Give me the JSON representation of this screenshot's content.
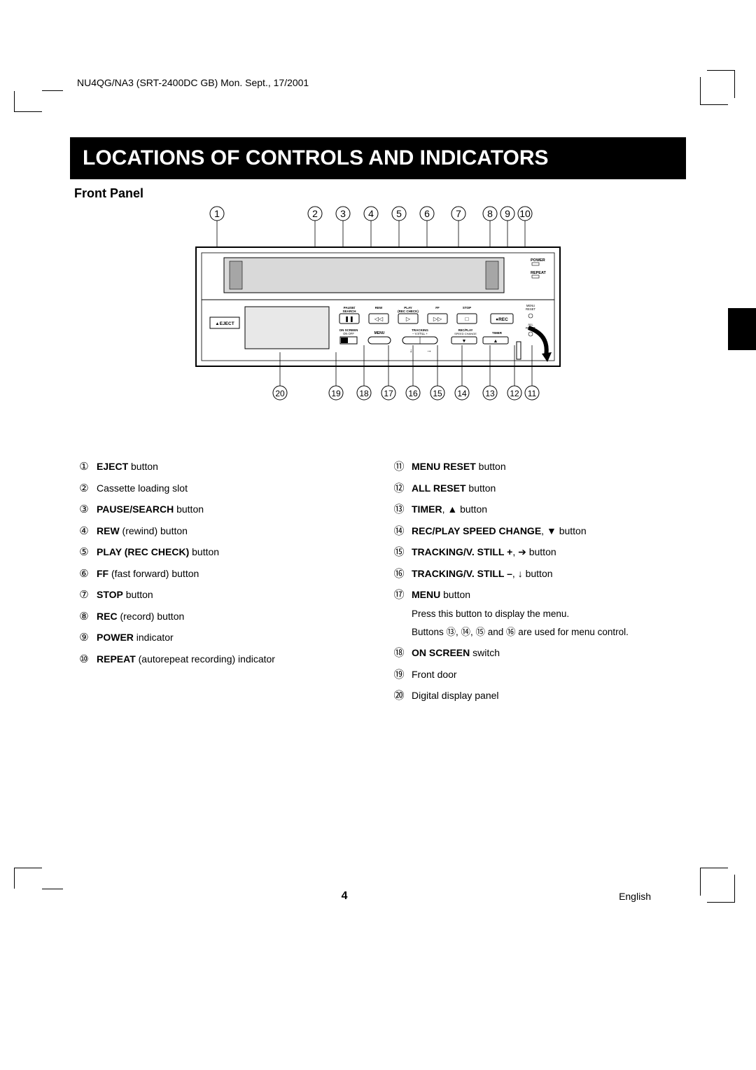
{
  "meta_header": "NU4QG/NA3 (SRT-2400DC GB)   Mon. Sept., 17/2001",
  "title": "LOCATIONS OF CONTROLS AND INDICATORS",
  "subheading": "Front Panel",
  "circled": [
    "①",
    "②",
    "③",
    "④",
    "⑤",
    "⑥",
    "⑦",
    "⑧",
    "⑨",
    "⑩",
    "⑪",
    "⑫",
    "⑬",
    "⑭",
    "⑮",
    "⑯",
    "⑰",
    "⑱",
    "⑲",
    "⑳"
  ],
  "left_items": [
    {
      "n": "①",
      "bold": "EJECT",
      "rest": " button"
    },
    {
      "n": "②",
      "bold": "",
      "rest": "Cassette loading slot"
    },
    {
      "n": "③",
      "bold": "PAUSE/SEARCH",
      "rest": " button"
    },
    {
      "n": "④",
      "bold": "REW",
      "rest": " (rewind) button"
    },
    {
      "n": "⑤",
      "bold": "PLAY (REC CHECK)",
      "rest": " button"
    },
    {
      "n": "⑥",
      "bold": "FF",
      "rest": " (fast forward) button"
    },
    {
      "n": "⑦",
      "bold": "STOP",
      "rest": " button"
    },
    {
      "n": "⑧",
      "bold": "REC",
      "rest": " (record) button"
    },
    {
      "n": "⑨",
      "bold": "POWER",
      "rest": " indicator"
    },
    {
      "n": "⑩",
      "bold": "REPEAT",
      "rest": " (autorepeat recording) indicator"
    }
  ],
  "right_items": [
    {
      "n": "⑪",
      "bold": "MENU RESET",
      "rest": " button"
    },
    {
      "n": "⑫",
      "bold": "ALL RESET",
      "rest": " button"
    },
    {
      "n": "⑬",
      "bold": "TIMER",
      "rest": ", ▲ button"
    },
    {
      "n": "⑭",
      "bold": "REC/PLAY SPEED CHANGE",
      "rest": ", ▼ button"
    },
    {
      "n": "⑮",
      "bold": "TRACKING/V. STILL +",
      "rest": ", ➔ button"
    },
    {
      "n": "⑯",
      "bold": "TRACKING/V. STILL –",
      "rest": ", ↓ button"
    },
    {
      "n": "⑰",
      "bold": "MENU",
      "rest": " button"
    }
  ],
  "menu_note_1": "Press this button to display the menu.",
  "menu_note_2": "Buttons ⑬, ⑭, ⑮ and ⑯ are used for menu control.",
  "right_items_after": [
    {
      "n": "⑱",
      "bold": "ON SCREEN",
      "rest": " switch"
    },
    {
      "n": "⑲",
      "bold": "",
      "rest": "Front door"
    },
    {
      "n": "⑳",
      "bold": "",
      "rest": "Digital display panel"
    }
  ],
  "page_number": "4",
  "lang_label": "English",
  "diagram": {
    "top_numbers": [
      "①",
      "②",
      "③",
      "④",
      "⑤",
      "⑥",
      "⑦",
      "⑧",
      "⑨",
      "⑩"
    ],
    "top_x": [
      50,
      190,
      230,
      270,
      310,
      350,
      395,
      440,
      465,
      490
    ],
    "bottom_numbers": [
      "⑳",
      "⑲",
      "⑱",
      "⑰",
      "⑯",
      "⑮",
      "⑭",
      "⑬",
      "⑫",
      "⑪"
    ],
    "bottom_x": [
      140,
      220,
      260,
      295,
      330,
      365,
      400,
      440,
      475,
      500
    ],
    "labels": {
      "eject": "▲EJECT",
      "pause": "PAUSE/\nSEARCH",
      "rew": "REW",
      "play": "PLAY\n(REC CHECK)",
      "ff": "FF",
      "stop": "STOP",
      "rec": "●REC",
      "power": "POWER",
      "repeat": "REPEAT",
      "menu_reset": "MENU\nRESET",
      "all_reset": "ALL\nRESET",
      "onscreen": "ON SCREEN\nON   OFF",
      "menu": "MENU",
      "tracking": "TRACKING\n– V.STILL +",
      "recplay": "REC/PLAY\nSPEED CHANGE",
      "timer": "TIMER"
    }
  }
}
